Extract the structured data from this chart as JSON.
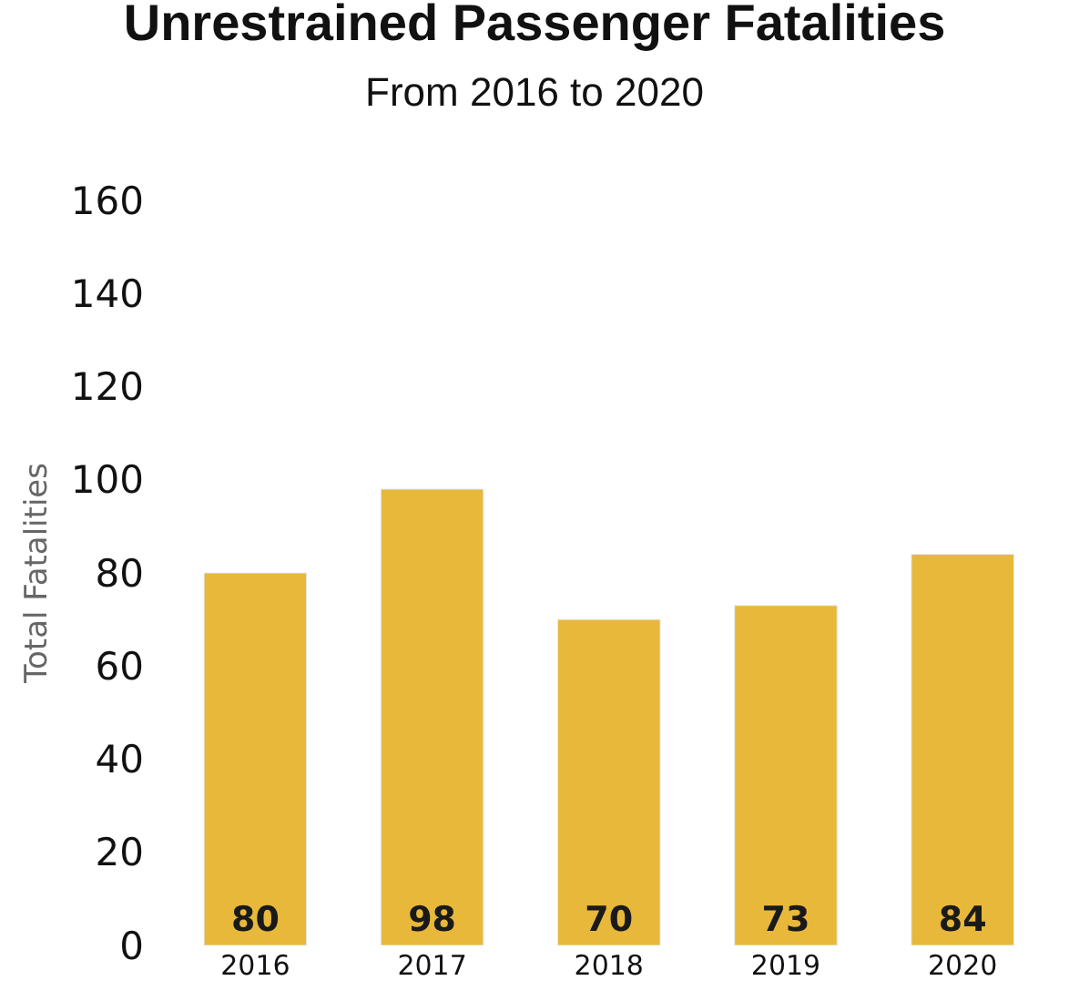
{
  "chart_data": {
    "type": "bar",
    "title": "Unrestrained Passenger Fatalities",
    "subtitle": "From 2016 to 2020",
    "ylabel": "Total Fatalities",
    "categories": [
      "2016",
      "2017",
      "2018",
      "2019",
      "2020"
    ],
    "values": [
      80,
      98,
      70,
      73,
      84
    ],
    "color": "#e8b83a",
    "ylim": [
      0,
      160
    ],
    "yticks": [
      0,
      20,
      40,
      60,
      80,
      100,
      120,
      140,
      160
    ],
    "grid": false,
    "data_labels": true
  }
}
